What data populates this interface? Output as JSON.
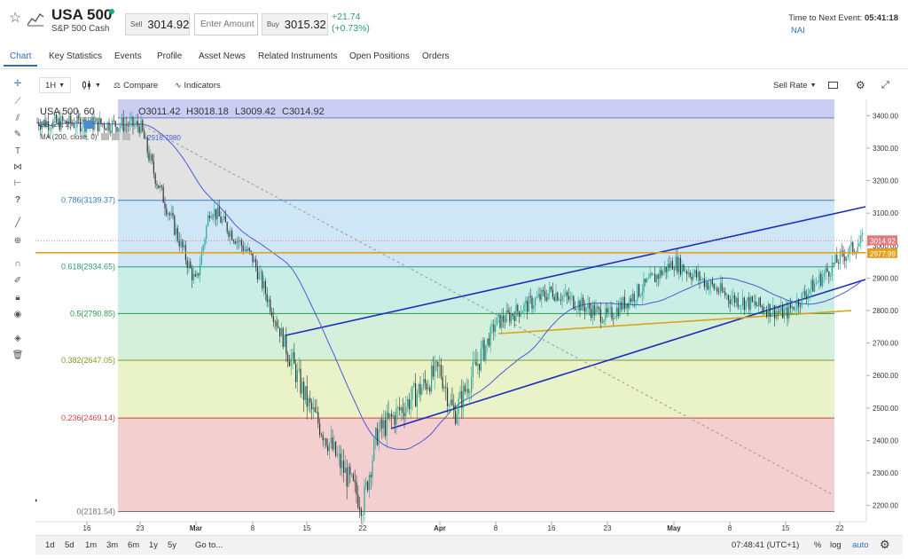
{
  "instrument": {
    "title": "USA 500",
    "subtitle": "S&P 500 Cash"
  },
  "quote": {
    "sell_label": "Sell",
    "sell_price": "3014.92",
    "amount_placeholder": "Enter Amount",
    "buy_label": "Buy",
    "buy_price": "3015.32",
    "change_abs": "+21.74",
    "change_pct": "(+0.73%)"
  },
  "event": {
    "label": "Time to Next Event:",
    "countdown": "05:41:18",
    "value": "NAI"
  },
  "tabs": [
    {
      "label": "Chart",
      "active": true
    },
    {
      "label": "Key Statistics"
    },
    {
      "label": "Events"
    },
    {
      "label": "Profile"
    },
    {
      "label": "Asset News"
    },
    {
      "label": "Related Instruments"
    },
    {
      "label": "Open Positions"
    },
    {
      "label": "Orders"
    }
  ],
  "toolbar": {
    "interval": "1H",
    "compare_label": "Compare",
    "indicators_label": "Indicators",
    "rate_select": "Sell Rate"
  },
  "icons": {
    "favorite": "star-icon",
    "chart": "chart-icon",
    "crosshair": "crosshair-icon",
    "candle": "candlestick-icon",
    "settings": "gear-icon",
    "fullscreen": "expand-icon",
    "bottom_settings": "gear-icon"
  },
  "legend": {
    "symbol": "USA 500, 60",
    "open": "O3011.42",
    "high": "H3018.18",
    "low": "L3009.42",
    "close": "C3014.92",
    "bb": "BB (20, 2)",
    "bb_value": "3389.16",
    "ma": "MA (200, close, 0)",
    "ma_value": "2916.7980"
  },
  "price_tags": {
    "last": "3014.92",
    "line": "2977.99"
  },
  "colors": {
    "up": "#26a69a",
    "down": "#333333",
    "trend": "#1b2dbf",
    "orange": "#e6a020",
    "ma": "#4a5bd6",
    "accent": "#2f6fb8",
    "change_positive": "#2a9d6e"
  },
  "chart_data": {
    "type": "candlestick",
    "title": "USA 500, 60",
    "x_ticks": [
      "16",
      "23",
      "Mar",
      "8",
      "15",
      "22",
      "Apr",
      "8",
      "16",
      "23",
      "May",
      "8",
      "15",
      "22"
    ],
    "y_ticks": [
      2200,
      2300,
      2400,
      2500,
      2600,
      2700,
      2800,
      2900,
      3000,
      3100,
      3200,
      3300,
      3400
    ],
    "ylim": [
      2150,
      3450
    ],
    "fibonacci": [
      {
        "label": "0(2181.54)",
        "value": 2181.54,
        "color": "#777777",
        "fill": "#f4cfcf"
      },
      {
        "label": "0.236(2469.14)",
        "value": 2469.14,
        "color": "#d04444",
        "fill": "#eaf2c8"
      },
      {
        "label": "0.382(2647.05)",
        "value": 2647.05,
        "color": "#7e9a2a",
        "fill": "#d4f0da"
      },
      {
        "label": "0.5(2790.85)",
        "value": 2790.85,
        "color": "#2a9a48",
        "fill": "#c8eee6"
      },
      {
        "label": "0.618(2934.65)",
        "value": 2934.65,
        "color": "#2a9a7a",
        "fill": "#cfe6f6"
      },
      {
        "label": "0.786(3139.37)",
        "value": 3139.37,
        "color": "#2f7fbf",
        "fill": "#e2e2e2"
      },
      {
        "label": "",
        "value": 3393.0,
        "color": "#7777cc",
        "fill": "#cccdf2"
      }
    ],
    "key_levels": [
      {
        "name": "last",
        "value": 3014.92
      },
      {
        "name": "horizontal",
        "value": 2977.99
      }
    ],
    "price_path": [
      [
        "16",
        3380
      ],
      [
        "23",
        3370
      ],
      [
        "23",
        3220
      ],
      [
        "Mar",
        2880
      ],
      [
        "Mar",
        3120
      ],
      [
        "8",
        2960
      ],
      [
        "15",
        2520
      ],
      [
        "22",
        2200
      ],
      [
        "22",
        2420
      ],
      [
        "Apr",
        2620
      ],
      [
        "Apr",
        2480
      ],
      [
        "8",
        2760
      ],
      [
        "16",
        2860
      ],
      [
        "23",
        2780
      ],
      [
        "May",
        2950
      ],
      [
        "8",
        2840
      ],
      [
        "15",
        2790
      ],
      [
        "22",
        2960
      ],
      [
        "22",
        3014.92
      ]
    ]
  },
  "bottom": {
    "ranges": [
      "1d",
      "5d",
      "1m",
      "3m",
      "6m",
      "1y",
      "5y"
    ],
    "goto": "Go to...",
    "time": "07:48:41 (UTC+1)",
    "pct": "%",
    "log": "log",
    "auto": "auto"
  }
}
